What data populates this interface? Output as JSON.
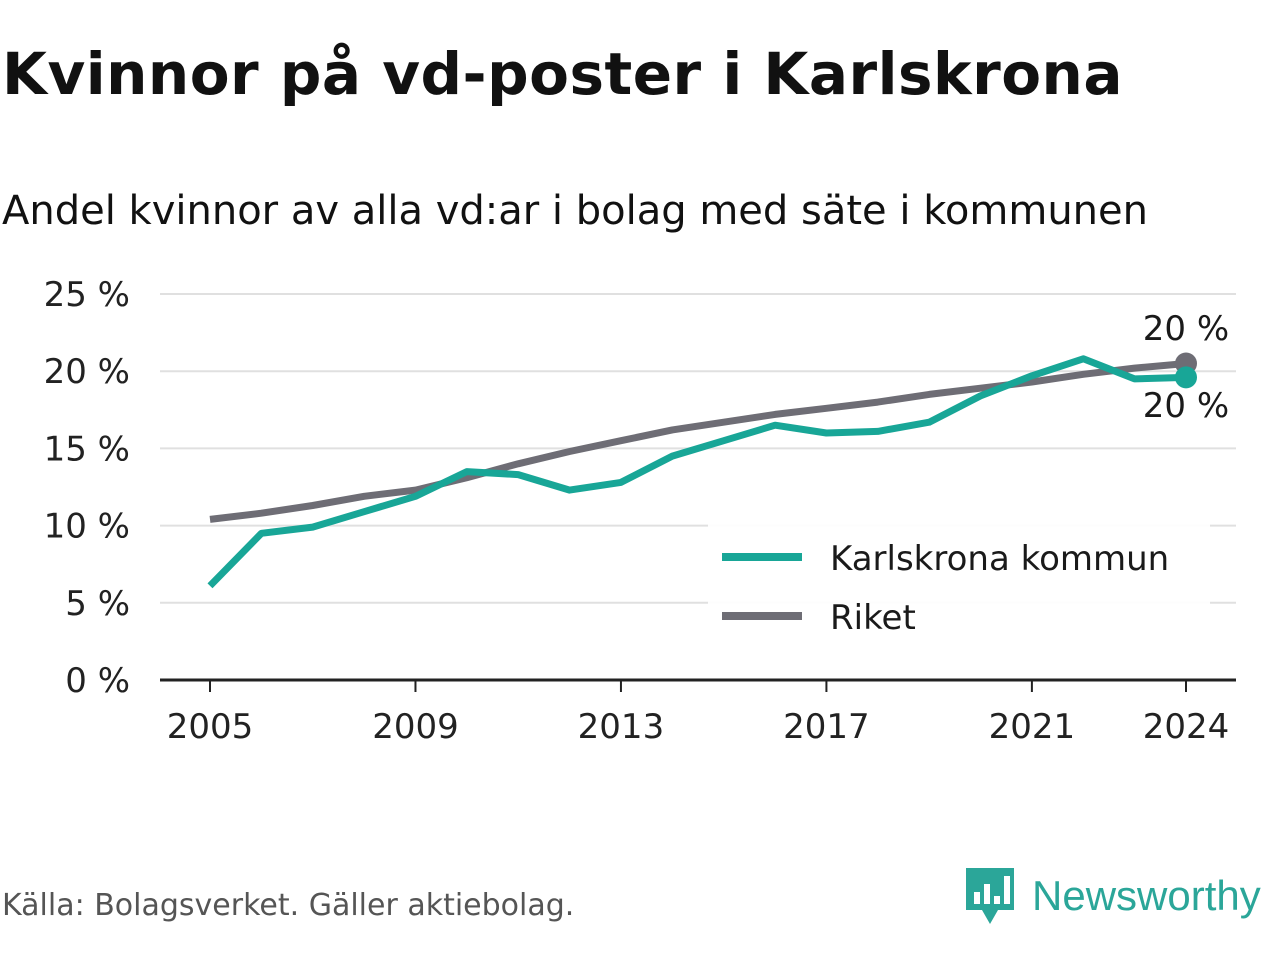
{
  "header": {
    "title": "Kvinnor på vd-poster i Karlskrona",
    "subtitle": "Andel kvinnor av alla vd:ar i bolag med säte i kommunen"
  },
  "footer": {
    "source": "Källa: Bolagsverket. Gäller aktiebolag.",
    "brand": "Newsworthy"
  },
  "colors": {
    "karlskrona": "#18a697",
    "riket": "#6e6d75",
    "grid": "#e0e0e0",
    "axis": "#222222",
    "brand": "#2ba699"
  },
  "chart_data": {
    "type": "line",
    "x": [
      2005,
      2006,
      2007,
      2008,
      2009,
      2010,
      2011,
      2012,
      2013,
      2014,
      2015,
      2016,
      2017,
      2018,
      2019,
      2020,
      2021,
      2022,
      2023,
      2024
    ],
    "series": [
      {
        "name": "Karlskrona kommun",
        "color": "#18a697",
        "values": [
          6.1,
          9.5,
          9.9,
          10.9,
          11.9,
          13.5,
          13.3,
          12.3,
          12.8,
          14.5,
          15.5,
          16.5,
          16.0,
          16.1,
          16.7,
          18.4,
          19.7,
          20.8,
          19.5,
          19.6
        ],
        "end_label": "20 %"
      },
      {
        "name": "Riket",
        "color": "#6e6d75",
        "values": [
          10.4,
          10.8,
          11.3,
          11.9,
          12.3,
          13.1,
          14.0,
          14.8,
          15.5,
          16.2,
          16.7,
          17.2,
          17.6,
          18.0,
          18.5,
          18.9,
          19.3,
          19.8,
          20.2,
          20.5
        ],
        "end_label": "20 %"
      }
    ],
    "x_ticks": [
      2005,
      2009,
      2013,
      2017,
      2021,
      2024
    ],
    "y_ticks": [
      0,
      5,
      10,
      15,
      20,
      25
    ],
    "y_tick_labels": [
      "0 %",
      "5 %",
      "10 %",
      "15 %",
      "20 %",
      "25 %"
    ],
    "ylim": [
      0,
      25
    ],
    "xlim": [
      2004,
      2025
    ],
    "grid": true,
    "legend": "bottom-right"
  }
}
